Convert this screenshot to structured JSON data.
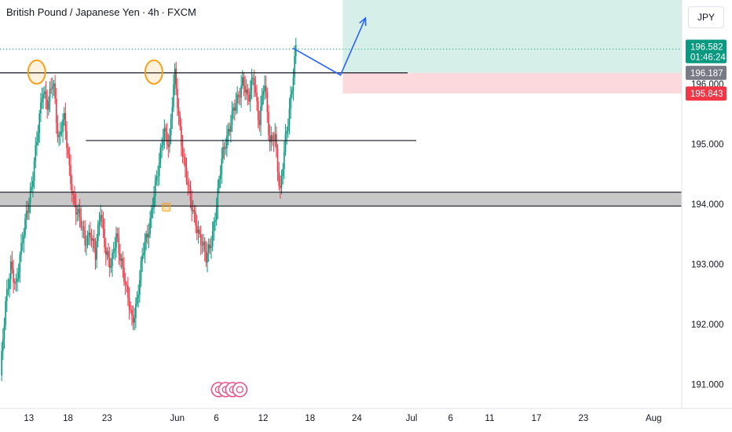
{
  "header": {
    "symbol": "British Pound / Japanese Yen",
    "interval": "4h",
    "source": "FXCM",
    "separator": "·"
  },
  "currency_button": "JPY",
  "colors": {
    "up": "#089981",
    "down": "#f23645",
    "profit_zone": "#d6efe9",
    "loss_zone": "#fbd9dc",
    "arrow": "#2962ff",
    "marker": "#f7a21b",
    "band": "#c8c8c8",
    "price_tag_current": "#089981",
    "price_tag_entry": "#787b86",
    "price_tag_stop": "#f23645"
  },
  "price_tags": {
    "current": "196.582",
    "countdown": "01:46:24",
    "entry": "196.187",
    "stop": "195.843"
  },
  "chart_data": {
    "type": "candlestick",
    "ylim": [
      190.6,
      197.4
    ],
    "y_ticks": [
      191,
      192,
      193,
      194,
      195,
      196
    ],
    "y_tick_labels": [
      "191.000",
      "192.000",
      "193.000",
      "194.000",
      "195.000",
      "196.000"
    ],
    "x_ticks": [
      {
        "label": "13",
        "day": 13
      },
      {
        "label": "18",
        "day": 18
      },
      {
        "label": "23",
        "day": 23
      },
      {
        "label": "Jun",
        "day": 32
      },
      {
        "label": "6",
        "day": 37
      },
      {
        "label": "12",
        "day": 43
      },
      {
        "label": "18",
        "day": 49
      },
      {
        "label": "24",
        "day": 55
      },
      {
        "label": "Jul",
        "day": 62
      },
      {
        "label": "6",
        "day": 67
      },
      {
        "label": "11",
        "day": 72
      },
      {
        "label": "17",
        "day": 78
      },
      {
        "label": "23",
        "day": 84
      },
      {
        "label": "Aug",
        "day": 93
      }
    ],
    "day_domain": [
      9.3,
      96.6
    ],
    "candles_start_day": 9.35,
    "candle_step_days": 0.1667,
    "close_path": [
      191.15,
      192.3,
      193.05,
      192.6,
      193.25,
      193.95,
      194.3,
      195.1,
      196.0,
      195.6,
      196.05,
      195.1,
      195.45,
      194.6,
      194.05,
      193.75,
      193.35,
      193.6,
      193.1,
      193.9,
      193.25,
      192.9,
      193.5,
      193.05,
      192.45,
      192.05,
      192.5,
      193.15,
      193.55,
      194.15,
      194.55,
      195.3,
      195.0,
      196.15,
      195.3,
      194.6,
      194.0,
      193.75,
      193.4,
      193.05,
      193.45,
      194.0,
      194.75,
      195.2,
      195.5,
      195.7,
      196.15,
      195.7,
      196.1,
      195.4,
      196.05,
      195.0,
      195.25,
      194.1,
      195.05,
      195.8,
      196.55
    ],
    "horizontal_lines": [
      {
        "price": 196.187,
        "from_day": 9.3,
        "to_day": 61.5
      },
      {
        "price": 195.06,
        "from_day": 20.3,
        "to_day": 62.6
      },
      {
        "price": 194.2,
        "from_day": 9.3,
        "to_day": 96.6
      },
      {
        "price": 193.97,
        "from_day": 9.3,
        "to_day": 96.6
      }
    ],
    "support_band": [
      193.97,
      194.2
    ],
    "position": {
      "start_day": 53.2,
      "entry": 196.187,
      "target": 197.4,
      "stop": 195.843,
      "dotted_price": 196.582
    },
    "projection_arrow": [
      {
        "day": 46.8,
        "price": 196.6
      },
      {
        "day": 52.9,
        "price": 196.15
      },
      {
        "day": 56.1,
        "price": 197.1
      }
    ],
    "resistance_markers": [
      {
        "day": 14.0,
        "price": 196.2
      },
      {
        "day": 29.0,
        "price": 196.2
      }
    ],
    "small_marker": {
      "day": 30.6,
      "price": 193.95
    },
    "event_icons_day": 38.5,
    "event_icon_count": 4
  }
}
